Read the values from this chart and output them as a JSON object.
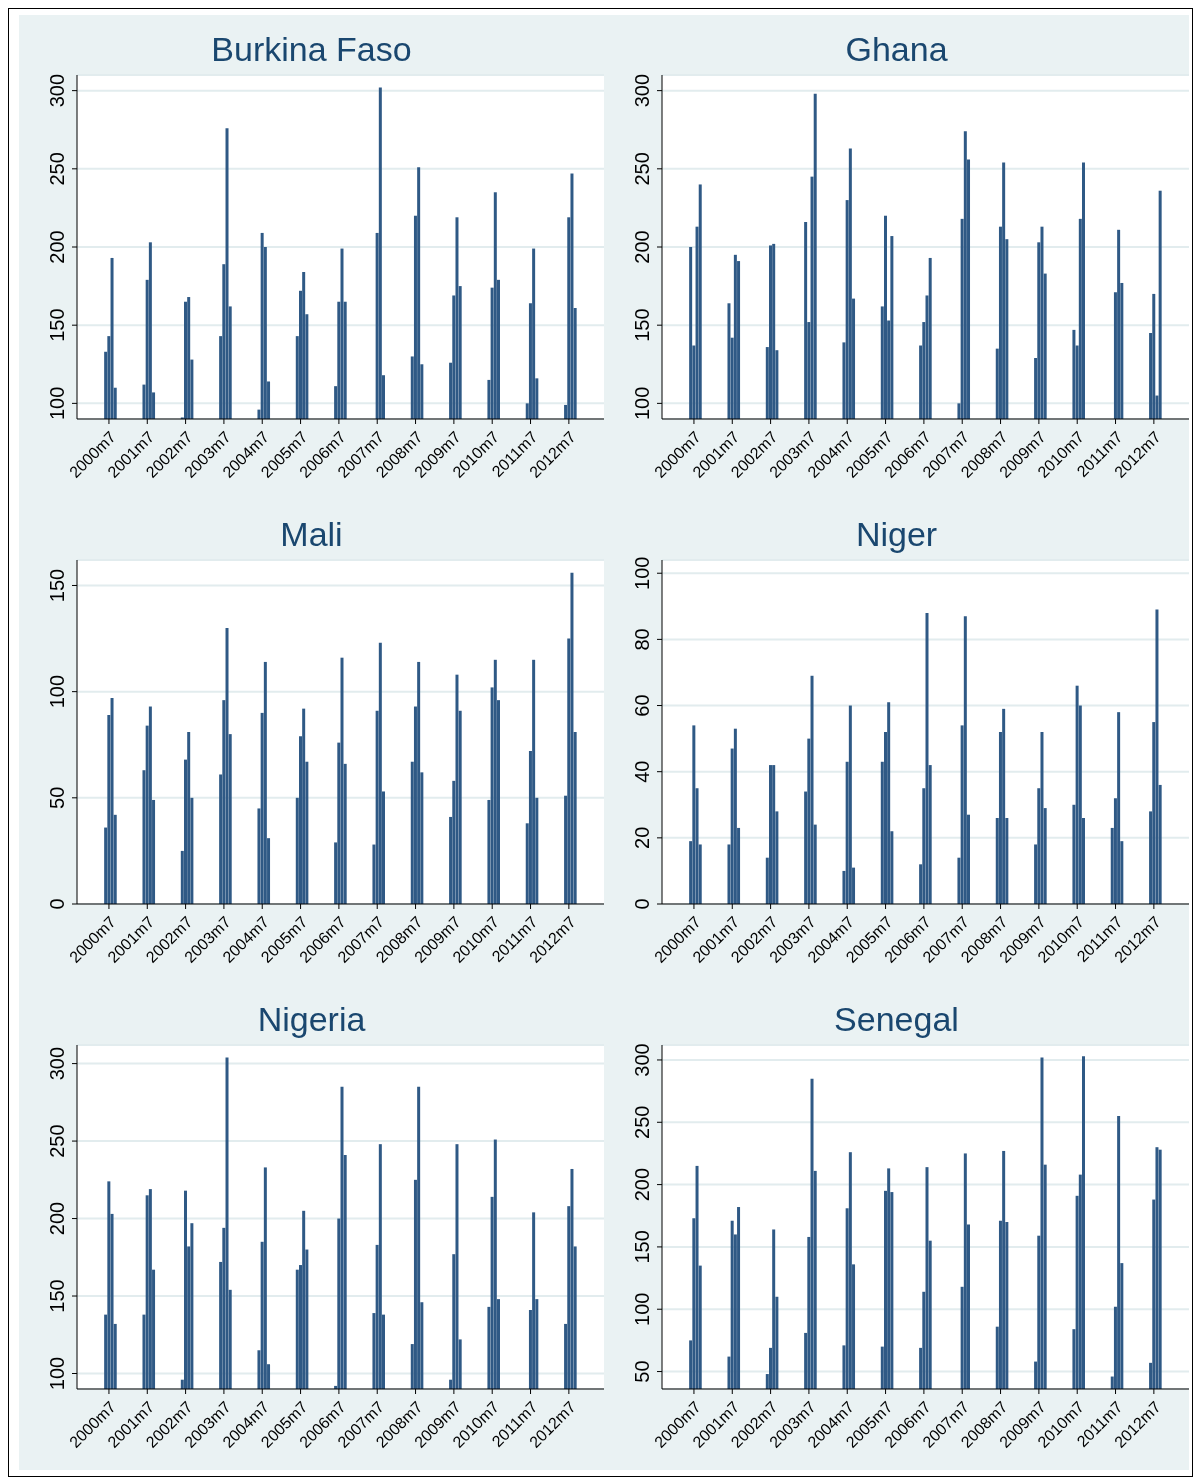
{
  "chart_data": [
    {
      "type": "bar",
      "title": "Burkina Faso",
      "color": "#2f5985",
      "grid": "y",
      "ylim": [
        90,
        310
      ],
      "yticks": [
        100,
        150,
        200,
        250,
        300
      ],
      "xlim": [
        "1999-09",
        "2013-06"
      ],
      "xticks": [
        {
          "value": "2000-07",
          "label": "2000m7"
        },
        {
          "value": "2001-07",
          "label": "2001m7"
        },
        {
          "value": "2002-07",
          "label": "2002m7"
        },
        {
          "value": "2003-07",
          "label": "2003m7"
        },
        {
          "value": "2004-07",
          "label": "2004m7"
        },
        {
          "value": "2005-07",
          "label": "2005m7"
        },
        {
          "value": "2006-07",
          "label": "2006m7"
        },
        {
          "value": "2007-07",
          "label": "2007m7"
        },
        {
          "value": "2008-07",
          "label": "2008m7"
        },
        {
          "value": "2009-07",
          "label": "2009m7"
        },
        {
          "value": "2010-07",
          "label": "2010m7"
        },
        {
          "value": "2011-07",
          "label": "2011m7"
        },
        {
          "value": "2012-07",
          "label": "2012m7"
        }
      ],
      "x": [
        "2000-06",
        "2000-07",
        "2000-08",
        "2000-09",
        "2001-06",
        "2001-07",
        "2001-08",
        "2001-09",
        "2002-06",
        "2002-07",
        "2002-08",
        "2002-09",
        "2003-06",
        "2003-07",
        "2003-08",
        "2003-09",
        "2004-06",
        "2004-07",
        "2004-08",
        "2004-09",
        "2005-06",
        "2005-07",
        "2005-08",
        "2005-09",
        "2006-06",
        "2006-07",
        "2006-08",
        "2006-09",
        "2007-06",
        "2007-07",
        "2007-08",
        "2007-09",
        "2008-06",
        "2008-07",
        "2008-08",
        "2008-09",
        "2009-06",
        "2009-07",
        "2009-08",
        "2009-09",
        "2010-06",
        "2010-07",
        "2010-08",
        "2010-09",
        "2011-06",
        "2011-07",
        "2011-08",
        "2011-09",
        "2012-06",
        "2012-07",
        "2012-08",
        "2012-09"
      ],
      "values": [
        133,
        143,
        193,
        110,
        112,
        179,
        203,
        107,
        91,
        165,
        168,
        128,
        143,
        189,
        276,
        162,
        96,
        209,
        200,
        114,
        143,
        172,
        184,
        157,
        111,
        165,
        199,
        165,
        null,
        209,
        302,
        118,
        130,
        220,
        251,
        125,
        126,
        169,
        219,
        175,
        115,
        174,
        235,
        179,
        100,
        164,
        199,
        116,
        99,
        219,
        247,
        161
      ]
    },
    {
      "type": "bar",
      "title": "Ghana",
      "color": "#2f5985",
      "grid": "y",
      "ylim": [
        90,
        310
      ],
      "yticks": [
        100,
        150,
        200,
        250,
        300
      ],
      "xlim": [
        "1999-09",
        "2013-06"
      ],
      "xticks": [
        {
          "value": "2000-07",
          "label": "2000m7"
        },
        {
          "value": "2001-07",
          "label": "2001m7"
        },
        {
          "value": "2002-07",
          "label": "2002m7"
        },
        {
          "value": "2003-07",
          "label": "2003m7"
        },
        {
          "value": "2004-07",
          "label": "2004m7"
        },
        {
          "value": "2005-07",
          "label": "2005m7"
        },
        {
          "value": "2006-07",
          "label": "2006m7"
        },
        {
          "value": "2007-07",
          "label": "2007m7"
        },
        {
          "value": "2008-07",
          "label": "2008m7"
        },
        {
          "value": "2009-07",
          "label": "2009m7"
        },
        {
          "value": "2010-07",
          "label": "2010m7"
        },
        {
          "value": "2011-07",
          "label": "2011m7"
        },
        {
          "value": "2012-07",
          "label": "2012m7"
        }
      ],
      "x": [
        "2000-06",
        "2000-07",
        "2000-08",
        "2000-09",
        "2001-06",
        "2001-07",
        "2001-08",
        "2001-09",
        "2002-06",
        "2002-07",
        "2002-08",
        "2002-09",
        "2003-06",
        "2003-07",
        "2003-08",
        "2003-09",
        "2004-06",
        "2004-07",
        "2004-08",
        "2004-09",
        "2005-06",
        "2005-07",
        "2005-08",
        "2005-09",
        "2006-06",
        "2006-07",
        "2006-08",
        "2006-09",
        "2007-06",
        "2007-07",
        "2007-08",
        "2007-09",
        "2008-06",
        "2008-07",
        "2008-08",
        "2008-09",
        "2009-06",
        "2009-07",
        "2009-08",
        "2009-09",
        "2010-06",
        "2010-07",
        "2010-08",
        "2010-09",
        "2011-06",
        "2011-07",
        "2011-08",
        "2011-09",
        "2012-06",
        "2012-07",
        "2012-08",
        "2012-09"
      ],
      "values": [
        200,
        137,
        213,
        240,
        164,
        142,
        195,
        191,
        136,
        201,
        202,
        134,
        216,
        152,
        245,
        298,
        139,
        230,
        263,
        167,
        162,
        220,
        153,
        207,
        137,
        152,
        169,
        193,
        100,
        218,
        274,
        256,
        135,
        213,
        254,
        205,
        129,
        203,
        213,
        183,
        147,
        137,
        218,
        254,
        null,
        171,
        211,
        177,
        145,
        170,
        105,
        236
      ]
    },
    {
      "type": "bar",
      "title": "Mali",
      "color": "#2f5985",
      "grid": "y",
      "ylim": [
        0,
        162
      ],
      "yticks": [
        0,
        50,
        100,
        150
      ],
      "xlim": [
        "1999-09",
        "2013-06"
      ],
      "xticks": [
        {
          "value": "2000-07",
          "label": "2000m7"
        },
        {
          "value": "2001-07",
          "label": "2001m7"
        },
        {
          "value": "2002-07",
          "label": "2002m7"
        },
        {
          "value": "2003-07",
          "label": "2003m7"
        },
        {
          "value": "2004-07",
          "label": "2004m7"
        },
        {
          "value": "2005-07",
          "label": "2005m7"
        },
        {
          "value": "2006-07",
          "label": "2006m7"
        },
        {
          "value": "2007-07",
          "label": "2007m7"
        },
        {
          "value": "2008-07",
          "label": "2008m7"
        },
        {
          "value": "2009-07",
          "label": "2009m7"
        },
        {
          "value": "2010-07",
          "label": "2010m7"
        },
        {
          "value": "2011-07",
          "label": "2011m7"
        },
        {
          "value": "2012-07",
          "label": "2012m7"
        }
      ],
      "x": [
        "2000-06",
        "2000-07",
        "2000-08",
        "2000-09",
        "2001-06",
        "2001-07",
        "2001-08",
        "2001-09",
        "2002-06",
        "2002-07",
        "2002-08",
        "2002-09",
        "2003-06",
        "2003-07",
        "2003-08",
        "2003-09",
        "2004-06",
        "2004-07",
        "2004-08",
        "2004-09",
        "2005-06",
        "2005-07",
        "2005-08",
        "2005-09",
        "2006-06",
        "2006-07",
        "2006-08",
        "2006-09",
        "2007-06",
        "2007-07",
        "2007-08",
        "2007-09",
        "2008-06",
        "2008-07",
        "2008-08",
        "2008-09",
        "2009-06",
        "2009-07",
        "2009-08",
        "2009-09",
        "2010-06",
        "2010-07",
        "2010-08",
        "2010-09",
        "2011-06",
        "2011-07",
        "2011-08",
        "2011-09",
        "2012-06",
        "2012-07",
        "2012-08",
        "2012-09"
      ],
      "values": [
        36,
        89,
        97,
        42,
        63,
        84,
        93,
        49,
        25,
        68,
        81,
        50,
        61,
        96,
        130,
        80,
        45,
        90,
        114,
        31,
        50,
        79,
        92,
        67,
        29,
        76,
        116,
        66,
        28,
        91,
        123,
        53,
        67,
        93,
        114,
        62,
        41,
        58,
        108,
        91,
        49,
        102,
        115,
        96,
        38,
        72,
        115,
        50,
        51,
        125,
        156,
        81
      ]
    },
    {
      "type": "bar",
      "title": "Niger",
      "color": "#2f5985",
      "grid": "y",
      "ylim": [
        0,
        104
      ],
      "yticks": [
        0,
        20,
        40,
        60,
        80,
        100
      ],
      "xlim": [
        "1999-09",
        "2013-06"
      ],
      "xticks": [
        {
          "value": "2000-07",
          "label": "2000m7"
        },
        {
          "value": "2001-07",
          "label": "2001m7"
        },
        {
          "value": "2002-07",
          "label": "2002m7"
        },
        {
          "value": "2003-07",
          "label": "2003m7"
        },
        {
          "value": "2004-07",
          "label": "2004m7"
        },
        {
          "value": "2005-07",
          "label": "2005m7"
        },
        {
          "value": "2006-07",
          "label": "2006m7"
        },
        {
          "value": "2007-07",
          "label": "2007m7"
        },
        {
          "value": "2008-07",
          "label": "2008m7"
        },
        {
          "value": "2009-07",
          "label": "2009m7"
        },
        {
          "value": "2010-07",
          "label": "2010m7"
        },
        {
          "value": "2011-07",
          "label": "2011m7"
        },
        {
          "value": "2012-07",
          "label": "2012m7"
        }
      ],
      "x": [
        "2000-06",
        "2000-07",
        "2000-08",
        "2000-09",
        "2001-06",
        "2001-07",
        "2001-08",
        "2001-09",
        "2002-06",
        "2002-07",
        "2002-08",
        "2002-09",
        "2003-06",
        "2003-07",
        "2003-08",
        "2003-09",
        "2004-06",
        "2004-07",
        "2004-08",
        "2004-09",
        "2005-06",
        "2005-07",
        "2005-08",
        "2005-09",
        "2006-06",
        "2006-07",
        "2006-08",
        "2006-09",
        "2007-06",
        "2007-07",
        "2007-08",
        "2007-09",
        "2008-06",
        "2008-07",
        "2008-08",
        "2008-09",
        "2009-06",
        "2009-07",
        "2009-08",
        "2009-09",
        "2010-06",
        "2010-07",
        "2010-08",
        "2010-09",
        "2011-06",
        "2011-07",
        "2011-08",
        "2011-09",
        "2012-06",
        "2012-07",
        "2012-08",
        "2012-09"
      ],
      "values": [
        19,
        54,
        35,
        18,
        18,
        47,
        53,
        23,
        14,
        42,
        42,
        28,
        34,
        50,
        69,
        24,
        10,
        43,
        60,
        11,
        43,
        52,
        61,
        22,
        12,
        35,
        88,
        42,
        14,
        54,
        87,
        27,
        26,
        52,
        59,
        26,
        18,
        35,
        52,
        29,
        30,
        66,
        60,
        26,
        23,
        32,
        58,
        19,
        28,
        55,
        89,
        36
      ]
    },
    {
      "type": "bar",
      "title": "Nigeria",
      "color": "#2f5985",
      "grid": "y",
      "ylim": [
        90,
        312
      ],
      "yticks": [
        100,
        150,
        200,
        250,
        300
      ],
      "xlim": [
        "1999-09",
        "2013-06"
      ],
      "xticks": [
        {
          "value": "2000-07",
          "label": "2000m7"
        },
        {
          "value": "2001-07",
          "label": "2001m7"
        },
        {
          "value": "2002-07",
          "label": "2002m7"
        },
        {
          "value": "2003-07",
          "label": "2003m7"
        },
        {
          "value": "2004-07",
          "label": "2004m7"
        },
        {
          "value": "2005-07",
          "label": "2005m7"
        },
        {
          "value": "2006-07",
          "label": "2006m7"
        },
        {
          "value": "2007-07",
          "label": "2007m7"
        },
        {
          "value": "2008-07",
          "label": "2008m7"
        },
        {
          "value": "2009-07",
          "label": "2009m7"
        },
        {
          "value": "2010-07",
          "label": "2010m7"
        },
        {
          "value": "2011-07",
          "label": "2011m7"
        },
        {
          "value": "2012-07",
          "label": "2012m7"
        }
      ],
      "x": [
        "2000-06",
        "2000-07",
        "2000-08",
        "2000-09",
        "2001-06",
        "2001-07",
        "2001-08",
        "2001-09",
        "2002-06",
        "2002-07",
        "2002-08",
        "2002-09",
        "2003-06",
        "2003-07",
        "2003-08",
        "2003-09",
        "2004-06",
        "2004-07",
        "2004-08",
        "2004-09",
        "2005-06",
        "2005-07",
        "2005-08",
        "2005-09",
        "2006-06",
        "2006-07",
        "2006-08",
        "2006-09",
        "2007-06",
        "2007-07",
        "2007-08",
        "2007-09",
        "2008-06",
        "2008-07",
        "2008-08",
        "2008-09",
        "2009-06",
        "2009-07",
        "2009-08",
        "2009-09",
        "2010-06",
        "2010-07",
        "2010-08",
        "2010-09",
        "2011-06",
        "2011-07",
        "2011-08",
        "2011-09",
        "2012-06",
        "2012-07",
        "2012-08",
        "2012-09"
      ],
      "values": [
        138,
        224,
        203,
        132,
        138,
        215,
        219,
        167,
        96,
        218,
        182,
        197,
        172,
        194,
        304,
        154,
        115,
        185,
        233,
        106,
        167,
        170,
        205,
        180,
        92,
        200,
        285,
        241,
        139,
        183,
        248,
        138,
        119,
        225,
        285,
        146,
        96,
        177,
        248,
        122,
        143,
        214,
        251,
        148,
        null,
        141,
        204,
        148,
        132,
        208,
        232,
        182
      ]
    },
    {
      "type": "bar",
      "title": "Senegal",
      "color": "#2f5985",
      "grid": "y",
      "ylim": [
        36,
        312
      ],
      "yticks": [
        50,
        100,
        150,
        200,
        250,
        300
      ],
      "xlim": [
        "1999-09",
        "2013-06"
      ],
      "xticks": [
        {
          "value": "2000-07",
          "label": "2000m7"
        },
        {
          "value": "2001-07",
          "label": "2001m7"
        },
        {
          "value": "2002-07",
          "label": "2002m7"
        },
        {
          "value": "2003-07",
          "label": "2003m7"
        },
        {
          "value": "2004-07",
          "label": "2004m7"
        },
        {
          "value": "2005-07",
          "label": "2005m7"
        },
        {
          "value": "2006-07",
          "label": "2006m7"
        },
        {
          "value": "2007-07",
          "label": "2007m7"
        },
        {
          "value": "2008-07",
          "label": "2008m7"
        },
        {
          "value": "2009-07",
          "label": "2009m7"
        },
        {
          "value": "2010-07",
          "label": "2010m7"
        },
        {
          "value": "2011-07",
          "label": "2011m7"
        },
        {
          "value": "2012-07",
          "label": "2012m7"
        }
      ],
      "x": [
        "2000-06",
        "2000-07",
        "2000-08",
        "2000-09",
        "2001-06",
        "2001-07",
        "2001-08",
        "2001-09",
        "2002-06",
        "2002-07",
        "2002-08",
        "2002-09",
        "2003-06",
        "2003-07",
        "2003-08",
        "2003-09",
        "2004-06",
        "2004-07",
        "2004-08",
        "2004-09",
        "2005-06",
        "2005-07",
        "2005-08",
        "2005-09",
        "2006-06",
        "2006-07",
        "2006-08",
        "2006-09",
        "2007-06",
        "2007-07",
        "2007-08",
        "2007-09",
        "2008-06",
        "2008-07",
        "2008-08",
        "2008-09",
        "2009-06",
        "2009-07",
        "2009-08",
        "2009-09",
        "2010-06",
        "2010-07",
        "2010-08",
        "2010-09",
        "2011-06",
        "2011-07",
        "2011-08",
        "2011-09",
        "2012-06",
        "2012-07",
        "2012-08",
        "2012-09"
      ],
      "values": [
        75,
        173,
        215,
        135,
        62,
        171,
        160,
        182,
        48,
        69,
        164,
        110,
        81,
        158,
        285,
        211,
        71,
        181,
        226,
        136,
        70,
        195,
        213,
        194,
        69,
        114,
        214,
        155,
        null,
        118,
        225,
        168,
        86,
        171,
        227,
        170,
        58,
        159,
        302,
        216,
        84,
        191,
        208,
        303,
        46,
        102,
        255,
        137,
        57,
        188,
        230,
        228
      ]
    }
  ]
}
